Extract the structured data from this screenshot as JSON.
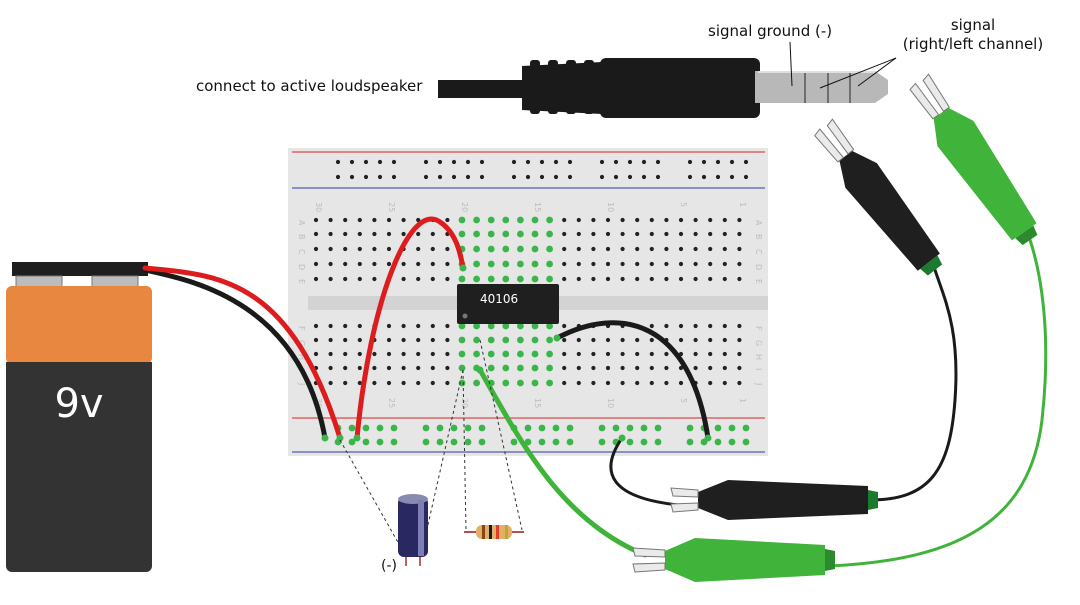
{
  "labels": {
    "speaker": "connect to active loudspeaker",
    "signal_ground": "signal ground (-)",
    "signal_line1": "signal",
    "signal_line2": "(right/left channel)",
    "cap_polarity": "(-)"
  },
  "battery": {
    "voltage": "9v"
  },
  "chip": {
    "name": "40106"
  },
  "breadboard": {
    "row_letters_top": [
      "A",
      "B",
      "C",
      "D",
      "E"
    ],
    "row_letters_bottom": [
      "F",
      "G",
      "H",
      "I",
      "J"
    ],
    "column_numbers": [
      "30",
      "25",
      "20",
      "15",
      "10",
      "5",
      "1"
    ]
  },
  "colors": {
    "battery_orange": "#e8873f",
    "battery_black": "#333333",
    "wire_red": "#dd1d1d",
    "wire_black": "#1a1a1a",
    "wire_green": "#3fb33a",
    "breadboard": "#e6e6e6",
    "highlight_hole": "#3ab54a"
  },
  "icons": [
    "battery-9v-icon",
    "audio-jack-icon",
    "capacitor-icon",
    "resistor-icon",
    "alligator-clip-icon",
    "ic-chip-icon"
  ]
}
